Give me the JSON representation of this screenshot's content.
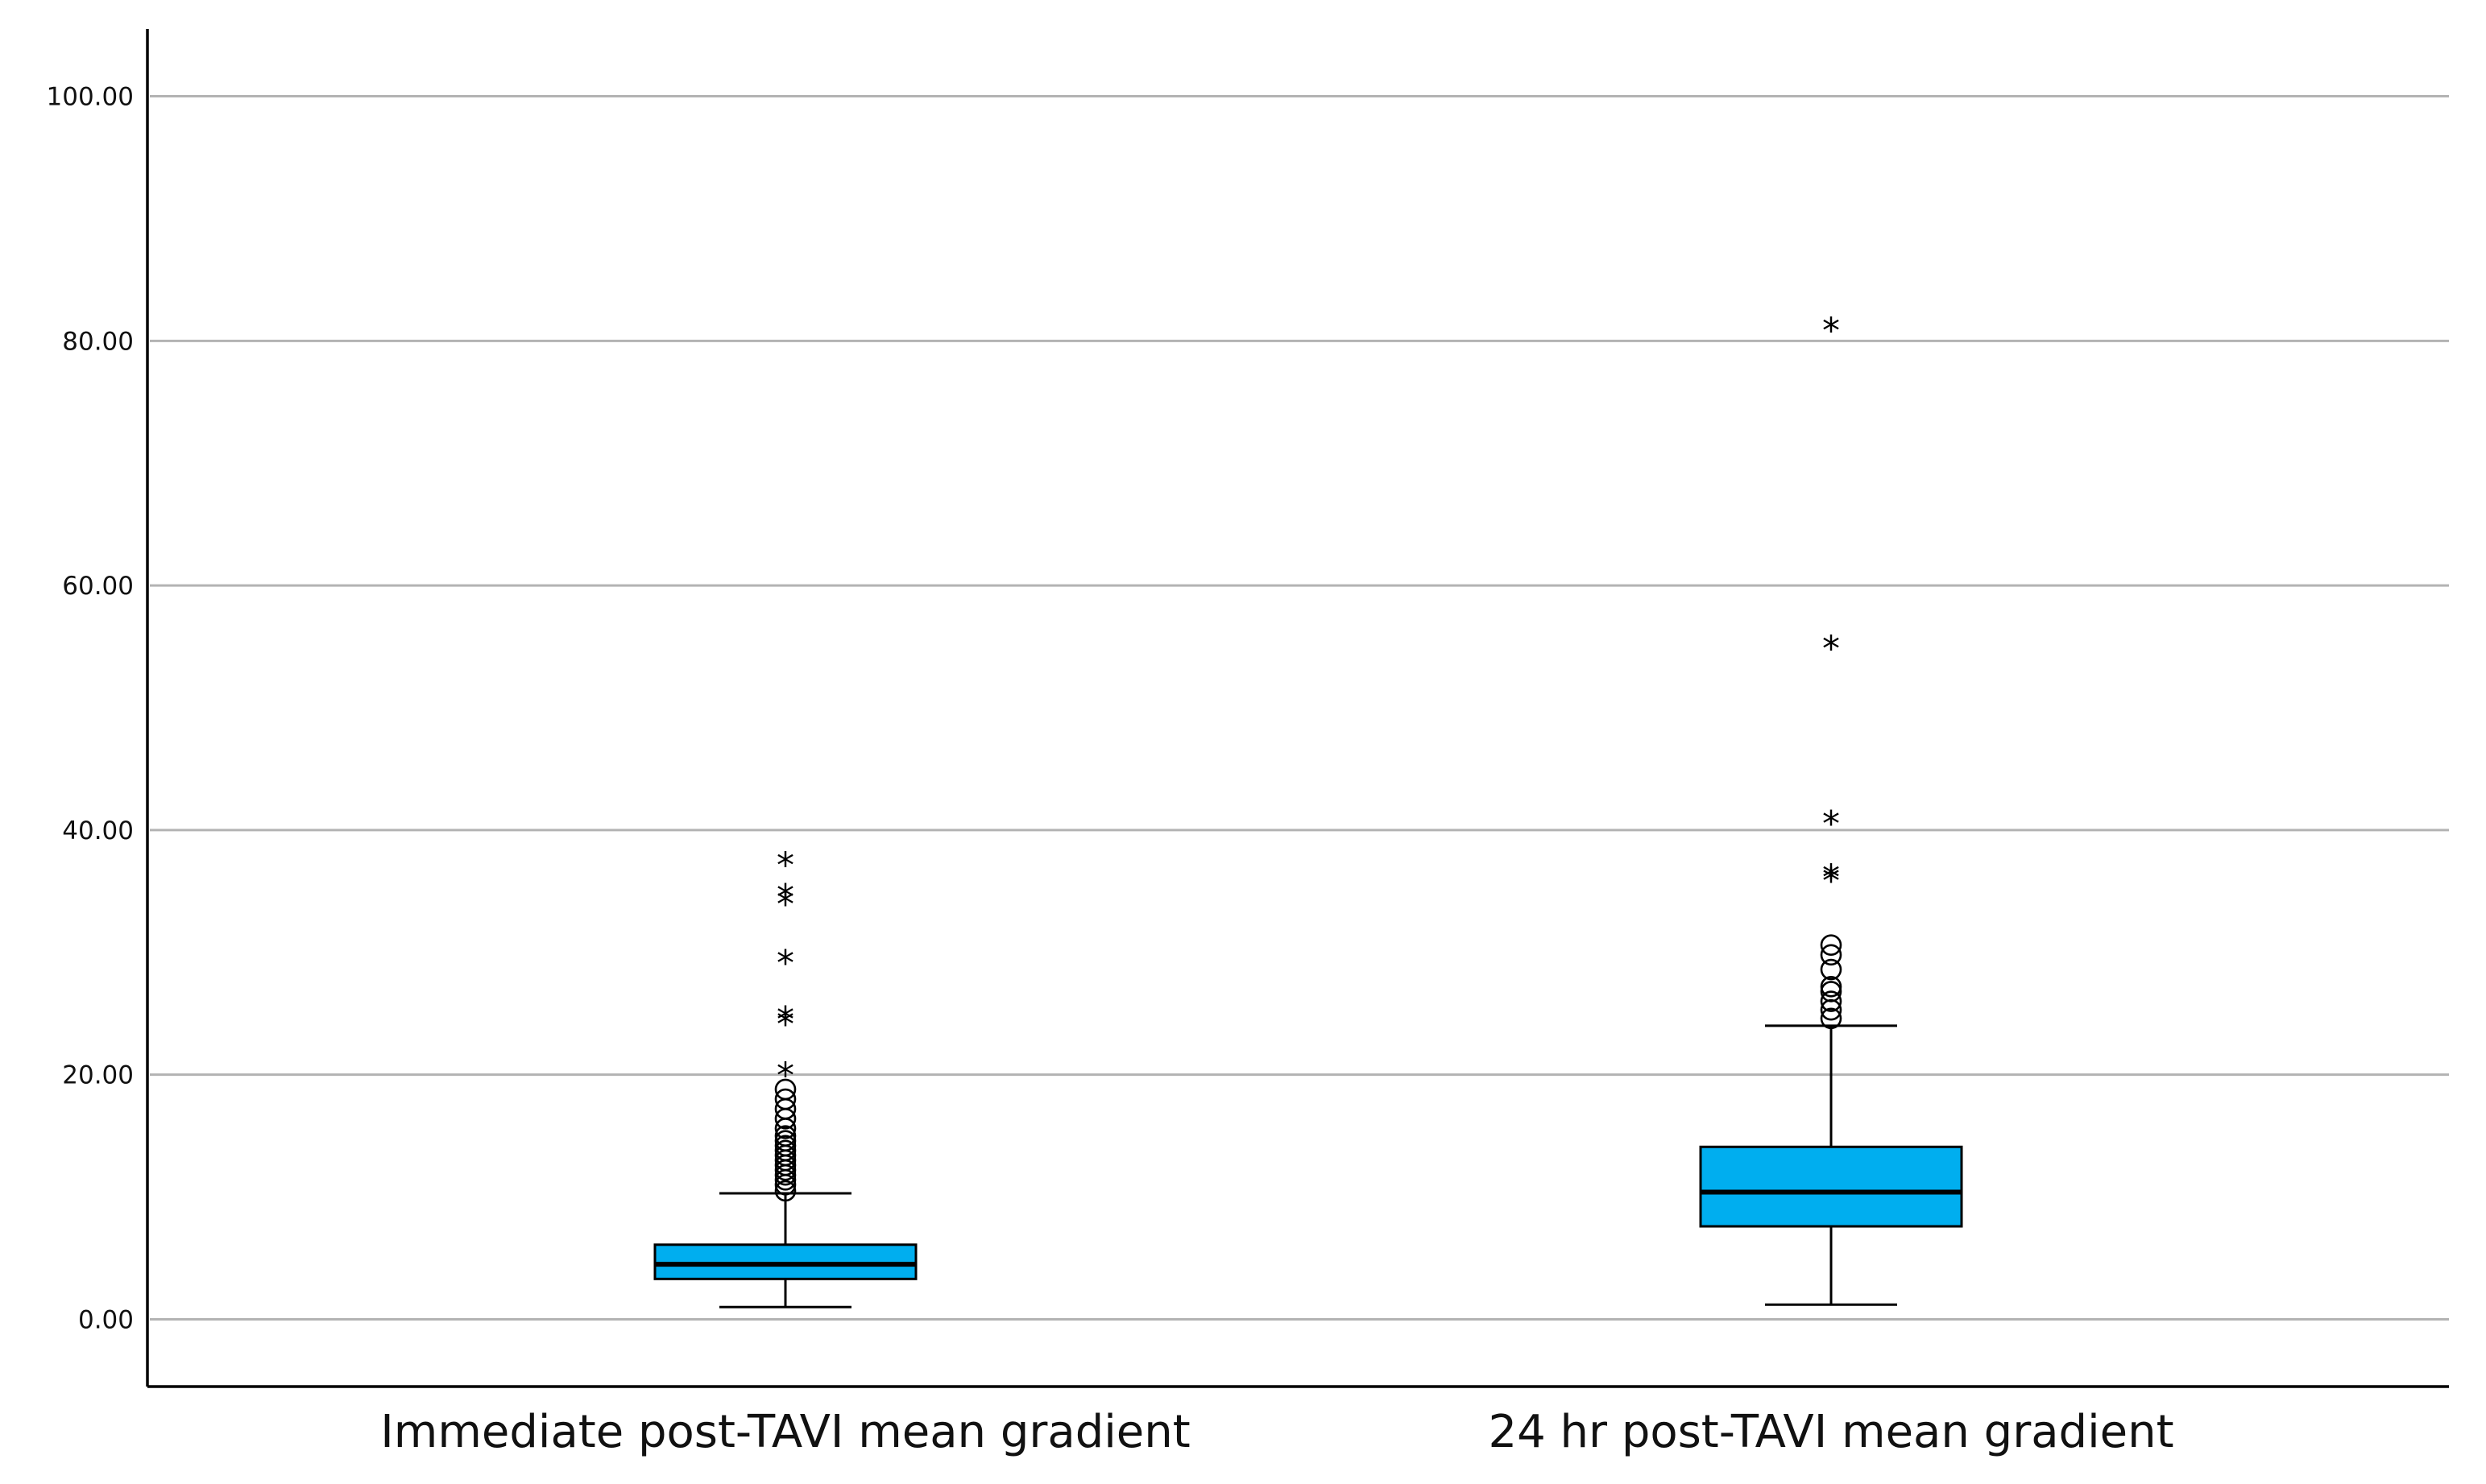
{
  "chart_data": {
    "type": "boxplot",
    "title": "",
    "xlabel": "",
    "ylabel": "",
    "ylim": [
      -5.5,
      105.5
    ],
    "grid": true,
    "yticks": [
      0,
      20,
      40,
      60,
      80,
      100
    ],
    "ytick_labels": [
      "0.00",
      "20.00",
      "40.00",
      "60.00",
      "80.00",
      "100.00"
    ],
    "box_color": "#00aeef",
    "groups": [
      {
        "label": "Immediate post-TAVI mean gradient",
        "whisker_low": 1.0,
        "q1": 3.3,
        "median": 4.5,
        "q3": 6.1,
        "whisker_high": 10.3,
        "outliers_circle": [
          10.5,
          11.0,
          11.4,
          11.8,
          12.2,
          12.6,
          13.0,
          13.4,
          13.8,
          14.2,
          14.6,
          15.0,
          15.6,
          16.4,
          17.2,
          18.0,
          18.8
        ],
        "outliers_star": [
          20.0,
          24.2,
          24.6,
          29.2,
          34.0,
          34.6,
          37.2
        ]
      },
      {
        "label": "24 hr post-TAVI mean gradient",
        "whisker_low": 1.2,
        "q1": 7.6,
        "median": 10.4,
        "q3": 14.1,
        "whisker_high": 24.0,
        "outliers_circle": [
          24.6,
          25.3,
          26.0,
          26.8,
          27.2,
          28.6,
          29.8,
          30.6
        ],
        "outliers_star": [
          35.9,
          36.2,
          40.6,
          54.9,
          80.9
        ]
      }
    ]
  }
}
